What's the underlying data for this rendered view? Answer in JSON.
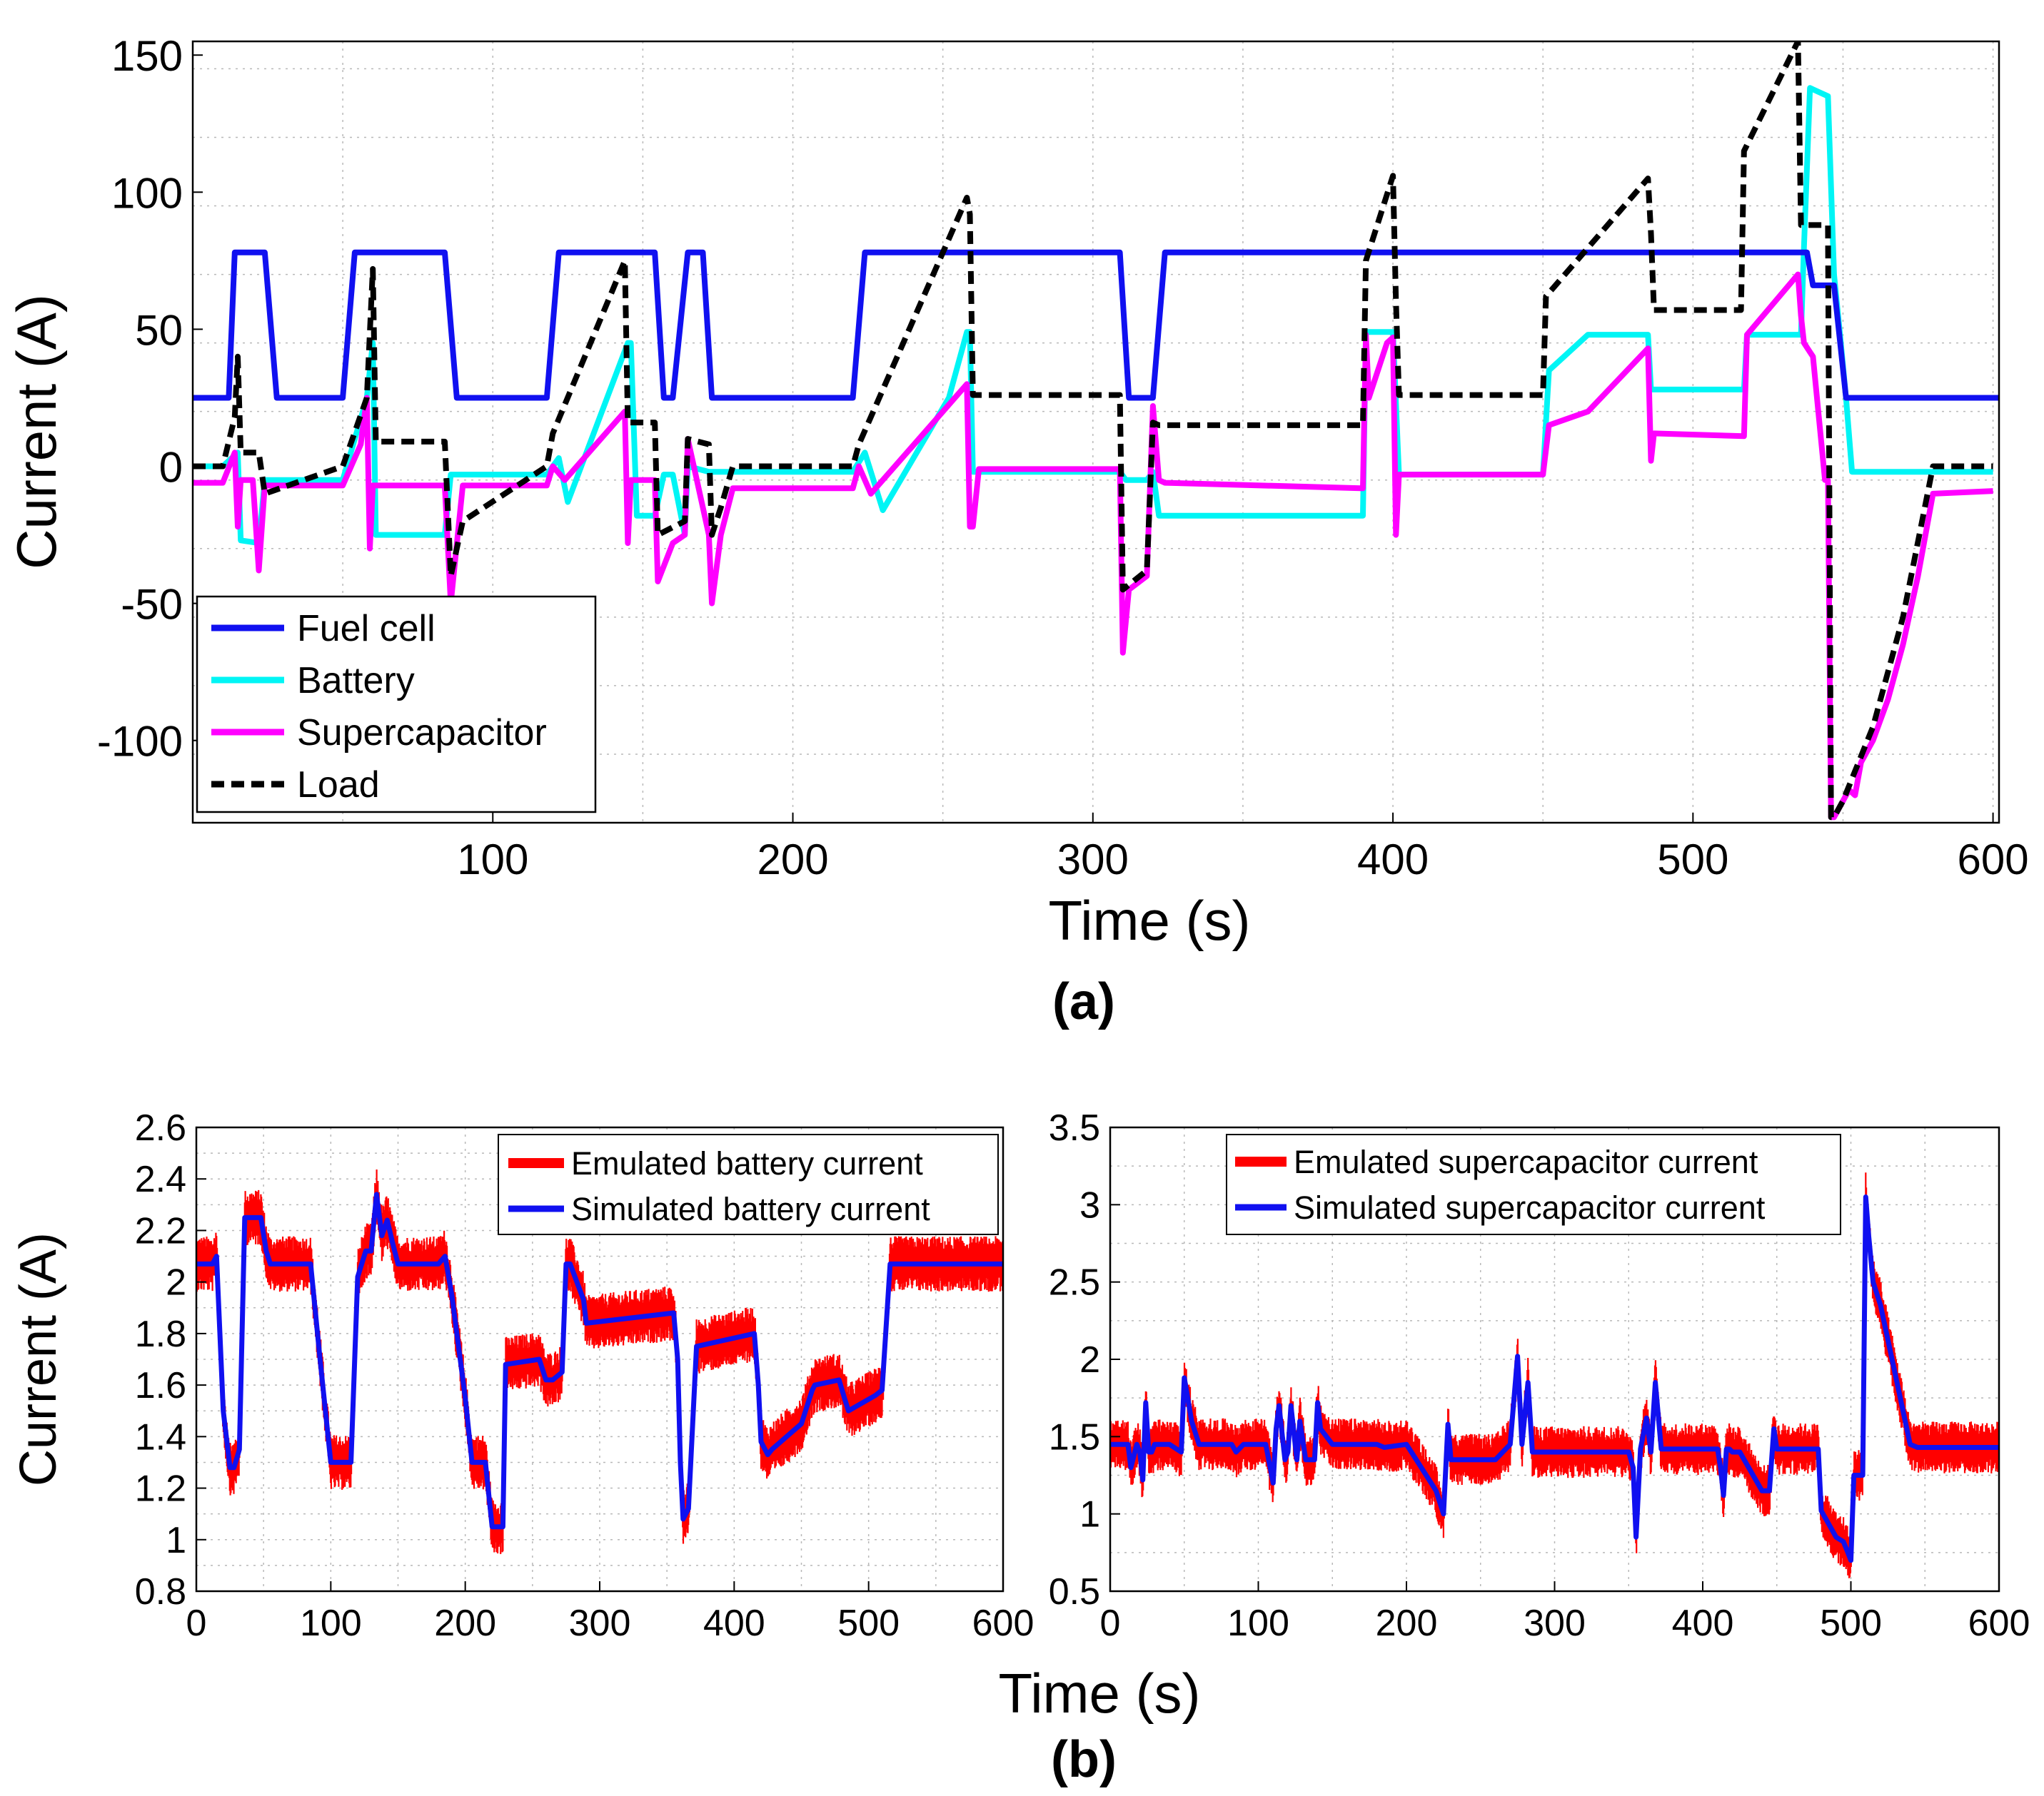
{
  "colors": {
    "fuel_cell": "#1010f0",
    "battery": "#00f5f5",
    "supercapacitor": "#ff00ff",
    "load": "#000000",
    "emulated": "#ff0000",
    "simulated": "#1010f0"
  },
  "chart_data": [
    {
      "type": "line",
      "panel_label": "(a)",
      "xlabel": "Time (s)",
      "ylabel": "Current (A)",
      "xlim": [
        0,
        602
      ],
      "ylim": [
        -130,
        155
      ],
      "xticks": [
        100,
        200,
        300,
        400,
        500,
        600
      ],
      "yticks": [
        -100,
        -50,
        0,
        50,
        100,
        150
      ],
      "grid": true,
      "legend_position": "bottom-left",
      "series": [
        {
          "name": "Fuel cell",
          "color": "#1010f0",
          "style": "solid",
          "x": [
            0,
            12,
            14,
            24,
            28,
            50,
            54,
            84,
            88,
            118,
            122,
            154,
            157,
            160,
            165,
            170,
            173,
            180,
            220,
            224,
            309,
            312,
            317,
            320,
            324,
            538,
            540,
            547,
            551,
            602
          ],
          "y": [
            25,
            25,
            78,
            78,
            25,
            25,
            78,
            78,
            25,
            25,
            78,
            78,
            25,
            25,
            78,
            78,
            25,
            25,
            25,
            78,
            78,
            25,
            25,
            25,
            78,
            78,
            66,
            66,
            25,
            25
          ]
        },
        {
          "name": "Battery",
          "color": "#00f5f5",
          "style": "solid",
          "x": [
            0,
            10,
            15,
            16,
            22,
            24,
            50,
            58,
            60,
            61,
            84,
            86,
            118,
            122,
            125,
            145,
            146,
            148,
            154,
            157,
            160,
            164,
            165,
            172,
            174,
            180,
            220,
            224,
            230,
            252,
            258,
            259,
            260,
            309,
            311,
            318,
            320,
            322,
            324,
            390,
            391,
            400,
            402,
            450,
            452,
            465,
            485,
            486,
            517,
            518,
            536,
            537,
            539,
            545,
            547,
            549,
            551,
            553,
            600
          ],
          "y": [
            0,
            0,
            5,
            -27,
            -28,
            -5,
            -5,
            25,
            45,
            -25,
            -25,
            -3,
            -3,
            3,
            -13,
            45,
            45,
            -18,
            -18,
            -3,
            -3,
            -25,
            0,
            -2,
            -2,
            -2,
            -2,
            5,
            -16,
            25,
            49,
            49,
            -2,
            -2,
            -5,
            -5,
            -2,
            -18,
            -18,
            -18,
            49,
            49,
            -3,
            -3,
            35,
            48,
            48,
            28,
            28,
            48,
            48,
            80,
            138,
            135,
            70,
            48,
            25,
            -2,
            -2
          ]
        },
        {
          "name": "Supercapacitor",
          "color": "#ff00ff",
          "style": "solid",
          "x": [
            0,
            10,
            14,
            15,
            16,
            20,
            22,
            24,
            50,
            56,
            58,
            59,
            60,
            62,
            84,
            86,
            90,
            118,
            120,
            124,
            140,
            144,
            145,
            146,
            148,
            154,
            155,
            160,
            164,
            165,
            172,
            173,
            176,
            180,
            220,
            222,
            226,
            250,
            258,
            259,
            260,
            262,
            309,
            310,
            312,
            318,
            320,
            322,
            324,
            390,
            391,
            392,
            398,
            400,
            401,
            402,
            450,
            452,
            465,
            485,
            486,
            487,
            517,
            518,
            535,
            536,
            537,
            540,
            544,
            545,
            546,
            547,
            550,
            552,
            554,
            556,
            560,
            565,
            570,
            575,
            580,
            600
          ],
          "y": [
            -6,
            -6,
            5,
            -22,
            -5,
            -5,
            -38,
            -7,
            -7,
            8,
            25,
            -30,
            -7,
            -7,
            -7,
            -50,
            -7,
            -7,
            0,
            -5,
            15,
            20,
            -28,
            -5,
            -5,
            -5,
            -42,
            -28,
            -25,
            10,
            -25,
            -50,
            -25,
            -8,
            -8,
            0,
            -10,
            20,
            30,
            -22,
            -22,
            -1,
            -1,
            -68,
            -45,
            -40,
            22,
            -5,
            -6,
            -8,
            48,
            25,
            45,
            47,
            -25,
            -3,
            -3,
            15,
            20,
            43,
            2,
            12,
            11,
            48,
            70,
            55,
            45,
            40,
            -5,
            -5,
            -128,
            -128,
            -122,
            -118,
            -120,
            -108,
            -100,
            -85,
            -65,
            -40,
            -10,
            -9
          ]
        },
        {
          "name": "Load",
          "color": "#000000",
          "style": "dashed",
          "x": [
            0,
            10,
            14,
            15,
            16,
            22,
            24,
            50,
            58,
            60,
            61,
            84,
            86,
            90,
            118,
            120,
            144,
            145,
            146,
            154,
            155,
            164,
            165,
            172,
            173,
            176,
            180,
            220,
            222,
            258,
            259,
            260,
            309,
            310,
            318,
            320,
            322,
            390,
            391,
            400,
            401,
            402,
            450,
            451,
            485,
            486,
            487,
            516,
            517,
            535,
            536,
            537,
            545,
            546,
            547,
            550,
            560,
            570,
            580,
            600
          ],
          "y": [
            0,
            0,
            18,
            40,
            5,
            5,
            -10,
            0,
            25,
            72,
            9,
            9,
            -40,
            -20,
            0,
            12,
            75,
            16,
            16,
            16,
            -25,
            -20,
            10,
            8,
            -25,
            -15,
            0,
            0,
            8,
            98,
            92,
            26,
            26,
            -45,
            -38,
            16,
            15,
            15,
            75,
            106,
            60,
            26,
            26,
            62,
            105,
            85,
            57,
            57,
            115,
            155,
            88,
            88,
            88,
            -128,
            -128,
            -122,
            -95,
            -55,
            0,
            0
          ]
        }
      ]
    },
    {
      "type": "line",
      "panel_label": "(b)",
      "xlabel": "Time (s)",
      "ylabel": "Current (A)",
      "xlim": [
        0,
        600
      ],
      "ylim": [
        0.8,
        2.6
      ],
      "xticks": [
        0,
        100,
        200,
        300,
        400,
        500,
        600
      ],
      "yticks": [
        0.8,
        1,
        1.2,
        1.4,
        1.6,
        1.8,
        2,
        2.2,
        2.4,
        2.6
      ],
      "grid": true,
      "legend_position": "top-right",
      "series": [
        {
          "name": "Simulated battery current",
          "color": "#1010f0",
          "noise_band": 0.09,
          "x": [
            0,
            12,
            15,
            20,
            25,
            28,
            32,
            36,
            48,
            52,
            55,
            60,
            85,
            92,
            100,
            105,
            115,
            120,
            123,
            126,
            130,
            134,
            138,
            142,
            146,
            150,
            155,
            180,
            185,
            190,
            200,
            205,
            210,
            215,
            220,
            225,
            228,
            230,
            255,
            260,
            265,
            272,
            275,
            278,
            288,
            290,
            355,
            358,
            360,
            362,
            366,
            372,
            415,
            418,
            420,
            425,
            428,
            450,
            458,
            460,
            478,
            482,
            485,
            505,
            510,
            516,
            600
          ],
          "y": [
            2.07,
            2.07,
            2.1,
            1.5,
            1.28,
            1.28,
            1.35,
            2.25,
            2.25,
            2.12,
            2.07,
            2.07,
            2.07,
            1.7,
            1.3,
            1.3,
            1.3,
            2.02,
            2.07,
            2.12,
            2.12,
            2.34,
            2.18,
            2.24,
            2.15,
            2.07,
            2.07,
            2.07,
            2.1,
            1.95,
            1.55,
            1.3,
            1.3,
            1.3,
            1.05,
            1.05,
            1.05,
            1.68,
            1.7,
            1.62,
            1.62,
            1.65,
            2.07,
            2.07,
            1.93,
            1.84,
            1.88,
            1.7,
            1.3,
            1.08,
            1.12,
            1.75,
            1.8,
            1.6,
            1.38,
            1.33,
            1.35,
            1.45,
            1.58,
            1.6,
            1.62,
            1.55,
            1.5,
            1.56,
            1.58,
            2.07,
            2.07
          ]
        },
        {
          "name": "Emulated battery current",
          "color": "#ff0000",
          "role": "noise envelope around simulated"
        }
      ]
    },
    {
      "type": "line",
      "panel_label": "(b)",
      "xlabel": "Time (s)",
      "ylabel": "",
      "xlim": [
        0,
        600
      ],
      "ylim": [
        0.5,
        3.5
      ],
      "xticks": [
        0,
        100,
        200,
        300,
        400,
        500,
        600
      ],
      "yticks": [
        0.5,
        1,
        1.5,
        2,
        2.5,
        3,
        3.5
      ],
      "grid": true,
      "legend_position": "top-right",
      "series": [
        {
          "name": "Simulated supercapacitor current",
          "color": "#1010f0",
          "noise_band": 0.14,
          "x": [
            0,
            8,
            10,
            12,
            14,
            18,
            20,
            22,
            24,
            26,
            28,
            30,
            40,
            48,
            50,
            55,
            60,
            82,
            85,
            90,
            95,
            100,
            105,
            110,
            112,
            114,
            118,
            120,
            122,
            126,
            128,
            132,
            138,
            140,
            142,
            150,
            158,
            180,
            185,
            200,
            210,
            220,
            225,
            228,
            230,
            240,
            260,
            270,
            275,
            278,
            282,
            285,
            290,
            300,
            350,
            353,
            355,
            358,
            362,
            365,
            368,
            372,
            380,
            410,
            412,
            414,
            416,
            418,
            420,
            425,
            440,
            445,
            448,
            450,
            452,
            455,
            470,
            478,
            480,
            490,
            495,
            498,
            500,
            502,
            505,
            508,
            510,
            512,
            515,
            520,
            530,
            540,
            545,
            600
          ],
          "y": [
            1.45,
            1.45,
            1.45,
            1.45,
            1.3,
            1.45,
            1.4,
            1.22,
            1.72,
            1.4,
            1.4,
            1.45,
            1.45,
            1.4,
            1.88,
            1.6,
            1.45,
            1.45,
            1.4,
            1.45,
            1.45,
            1.45,
            1.45,
            1.2,
            1.55,
            1.7,
            1.35,
            1.4,
            1.7,
            1.35,
            1.6,
            1.35,
            1.35,
            1.72,
            1.55,
            1.45,
            1.45,
            1.45,
            1.43,
            1.45,
            1.3,
            1.15,
            1.0,
            1.58,
            1.35,
            1.35,
            1.35,
            1.45,
            2.02,
            1.45,
            1.85,
            1.4,
            1.4,
            1.4,
            1.4,
            1.3,
            0.85,
            1.42,
            1.62,
            1.4,
            1.85,
            1.42,
            1.42,
            1.42,
            1.3,
            1.12,
            1.42,
            1.42,
            1.4,
            1.4,
            1.15,
            1.15,
            1.55,
            1.42,
            1.42,
            1.42,
            1.42,
            1.42,
            1.02,
            0.85,
            0.82,
            0.75,
            0.7,
            1.25,
            1.25,
            1.25,
            3.05,
            2.8,
            2.5,
            2.35,
            1.9,
            1.45,
            1.43,
            1.43
          ]
        },
        {
          "name": "Emulated supercapacitor current",
          "color": "#ff0000",
          "role": "noise envelope around simulated"
        }
      ]
    }
  ],
  "panel_a": {
    "ticks_x": [
      "100",
      "200",
      "300",
      "400",
      "500",
      "600"
    ],
    "ticks_y": [
      "-100",
      "-50",
      "0",
      "50",
      "100",
      "150"
    ],
    "xlabel": "Time (s)",
    "ylabel": "Current (A)",
    "label": "(a)",
    "legend": [
      "Fuel cell",
      "Battery",
      "Supercapacitor",
      "Load"
    ]
  },
  "panel_b_left": {
    "ticks_x": [
      "0",
      "100",
      "200",
      "300",
      "400",
      "500",
      "600"
    ],
    "ticks_y": [
      "0.8",
      "1",
      "1.2",
      "1.4",
      "1.6",
      "1.8",
      "2",
      "2.2",
      "2.4",
      "2.6"
    ],
    "ylabel": "Current (A)",
    "legend": [
      "Emulated battery current",
      "Simulated battery current"
    ]
  },
  "panel_b_right": {
    "ticks_x": [
      "0",
      "100",
      "200",
      "300",
      "400",
      "500",
      "600"
    ],
    "ticks_y": [
      "0.5",
      "1",
      "1.5",
      "2",
      "2.5",
      "3",
      "3.5"
    ],
    "legend": [
      "Emulated supercapacitor current",
      "Simulated supercapacitor current"
    ]
  },
  "panel_b": {
    "xlabel": "Time (s)",
    "label": "(b)"
  }
}
